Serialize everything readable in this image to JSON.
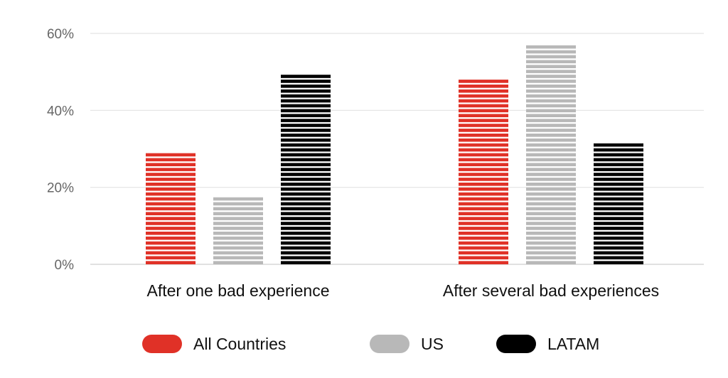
{
  "chart_data": {
    "type": "bar",
    "categories": [
      "After one bad experience",
      "After several bad experiences"
    ],
    "series": [
      {
        "name": "All Countries",
        "color": "#e03127",
        "values": [
          30,
          48
        ]
      },
      {
        "name": "US",
        "color": "#b8b8b8",
        "values": [
          18,
          58
        ]
      },
      {
        "name": "LATAM",
        "color": "#000000",
        "values": [
          50,
          32
        ]
      }
    ],
    "ylim": [
      0,
      60
    ],
    "yticks": [
      {
        "value": 0,
        "label": "0%"
      },
      {
        "value": 20,
        "label": "20%"
      },
      {
        "value": 40,
        "label": "40%"
      },
      {
        "value": 60,
        "label": "60%"
      }
    ],
    "grid": true,
    "legend_position": "bottom",
    "bar_style": "horizontal-striped"
  }
}
